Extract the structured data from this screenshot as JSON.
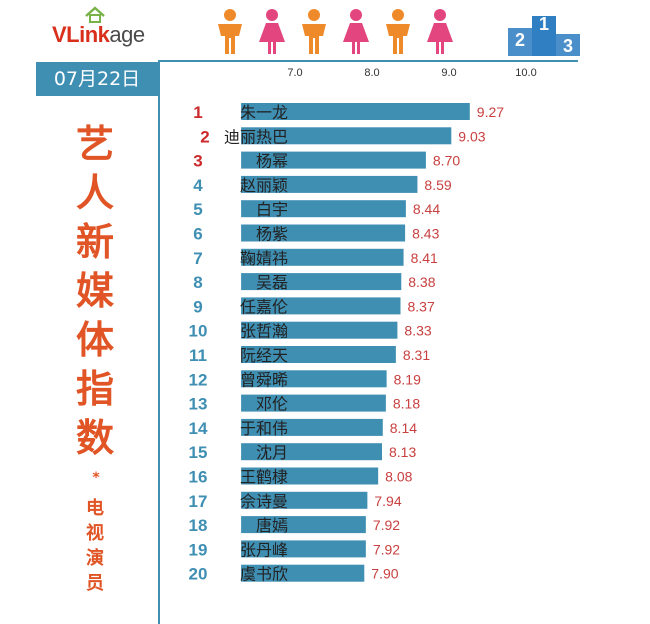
{
  "logo": {
    "part1": "VLink",
    "part2": "age"
  },
  "date": "07月22日",
  "title": {
    "main": "艺人新媒体指数",
    "star": "*",
    "sub": "电视演员"
  },
  "colors": {
    "bar": "#3f8fb3",
    "rank_top": "#cc2a2a",
    "rank_other": "#3f8fb3",
    "value": "#c94040",
    "accent": "#e05425",
    "pink": "#e3457f",
    "orange": "#ef8a2b"
  },
  "chart_data": {
    "type": "bar",
    "orientation": "horizontal",
    "xlim": [
      6.3,
      10.0
    ],
    "xticks": [
      "7.0",
      "8.0",
      "9.0",
      "10.0"
    ],
    "tick_values": [
      7.0,
      8.0,
      9.0,
      10.0
    ],
    "bars": [
      {
        "rank": "1",
        "name": "朱一龙",
        "value": 9.27,
        "label": "9.27"
      },
      {
        "rank": "2",
        "name": "迪丽热巴",
        "value": 9.03,
        "label": "9.03"
      },
      {
        "rank": "3",
        "name": "杨幂",
        "value": 8.7,
        "label": "8.70"
      },
      {
        "rank": "4",
        "name": "赵丽颖",
        "value": 8.59,
        "label": "8.59"
      },
      {
        "rank": "5",
        "name": "白宇",
        "value": 8.44,
        "label": "8.44"
      },
      {
        "rank": "6",
        "name": "杨紫",
        "value": 8.43,
        "label": "8.43"
      },
      {
        "rank": "7",
        "name": "鞠婧祎",
        "value": 8.41,
        "label": "8.41"
      },
      {
        "rank": "8",
        "name": "吴磊",
        "value": 8.38,
        "label": "8.38"
      },
      {
        "rank": "9",
        "name": "任嘉伦",
        "value": 8.37,
        "label": "8.37"
      },
      {
        "rank": "10",
        "name": "张哲瀚",
        "value": 8.33,
        "label": "8.33"
      },
      {
        "rank": "11",
        "name": "阮经天",
        "value": 8.31,
        "label": "8.31"
      },
      {
        "rank": "12",
        "name": "曾舜晞",
        "value": 8.19,
        "label": "8.19"
      },
      {
        "rank": "13",
        "name": "邓伦",
        "value": 8.18,
        "label": "8.18"
      },
      {
        "rank": "14",
        "name": "于和伟",
        "value": 8.14,
        "label": "8.14"
      },
      {
        "rank": "15",
        "name": "沈月",
        "value": 8.13,
        "label": "8.13"
      },
      {
        "rank": "16",
        "name": "王鹤棣",
        "value": 8.08,
        "label": "8.08"
      },
      {
        "rank": "17",
        "name": "佘诗曼",
        "value": 7.94,
        "label": "7.94"
      },
      {
        "rank": "18",
        "name": "唐嫣",
        "value": 7.92,
        "label": "7.92"
      },
      {
        "rank": "19",
        "name": "张丹峰",
        "value": 7.92,
        "label": "7.92"
      },
      {
        "rank": "20",
        "name": "虞书欣",
        "value": 7.9,
        "label": "7.90"
      }
    ]
  },
  "podium_labels": [
    "2",
    "1",
    "3"
  ]
}
